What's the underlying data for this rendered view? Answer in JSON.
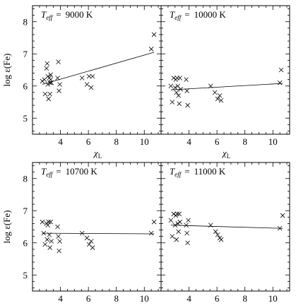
{
  "chart_data": [
    {
      "type": "scatter",
      "panel_label": {
        "symbol": "T",
        "subscript": "eff",
        "equals": "=",
        "value": "9000 K"
      },
      "xlabel": {
        "symbol": "χ",
        "subscript": "L"
      },
      "ylabel": "log ε(Fe)",
      "xlim": [
        2,
        11.2
      ],
      "ylim": [
        4.5,
        8.5
      ],
      "xticks": [
        4,
        6,
        8,
        10
      ],
      "yticks": [
        5,
        6,
        7,
        8
      ],
      "points": {
        "x": [
          2.7,
          2.85,
          2.9,
          3.0,
          3.05,
          3.1,
          3.1,
          3.15,
          3.2,
          3.25,
          3.25,
          3.3,
          3.3,
          3.35,
          3.8,
          3.85,
          3.9,
          3.95,
          5.55,
          5.9,
          6.05,
          6.2,
          6.3,
          10.5,
          10.7
        ],
        "y": [
          6.15,
          6.2,
          5.75,
          6.55,
          6.7,
          6.3,
          6.05,
          5.6,
          6.25,
          6.1,
          5.75,
          6.2,
          6.35,
          6.1,
          6.25,
          6.75,
          5.85,
          6.05,
          6.25,
          6.05,
          6.3,
          5.95,
          6.3,
          7.15,
          7.6
        ]
      },
      "fit_line": {
        "x": [
          2.7,
          10.7
        ],
        "y": [
          6.05,
          7.05
        ]
      }
    },
    {
      "type": "scatter",
      "panel_label": {
        "symbol": "T",
        "subscript": "eff",
        "equals": "=",
        "value": "10000 K"
      },
      "xlabel": {
        "symbol": "χ",
        "subscript": "L"
      },
      "ylabel": "",
      "xlim": [
        2,
        11.2
      ],
      "ylim": [
        4.5,
        8.5
      ],
      "xticks": [
        4,
        6,
        8,
        10
      ],
      "yticks": [
        5,
        6,
        7,
        8
      ],
      "points": {
        "x": [
          2.7,
          2.8,
          2.9,
          3.0,
          3.05,
          3.1,
          3.15,
          3.2,
          3.25,
          3.3,
          3.35,
          3.4,
          3.8,
          3.85,
          3.9,
          5.55,
          5.85,
          6.05,
          6.2,
          6.3,
          10.5,
          10.6
        ],
        "y": [
          6.0,
          5.5,
          6.25,
          5.95,
          6.2,
          5.8,
          6.25,
          6.0,
          5.7,
          5.45,
          6.25,
          5.9,
          6.2,
          5.85,
          5.4,
          6.0,
          5.8,
          5.6,
          5.7,
          5.55,
          6.1,
          6.5
        ]
      },
      "fit_line": {
        "x": [
          2.7,
          10.7
        ],
        "y": [
          5.88,
          6.08
        ]
      }
    },
    {
      "type": "scatter",
      "panel_label": {
        "symbol": "T",
        "subscript": "eff",
        "equals": "=",
        "value": "10700 K"
      },
      "xlabel": {
        "symbol": "χ",
        "subscript": "L"
      },
      "ylabel": "log ε(Fe)",
      "xlim": [
        2,
        11.2
      ],
      "ylim": [
        4.5,
        8.5
      ],
      "xticks": [
        4,
        6,
        8,
        10
      ],
      "yticks": [
        5,
        6,
        7,
        8
      ],
      "points": {
        "x": [
          2.7,
          2.8,
          2.9,
          3.0,
          3.05,
          3.1,
          3.15,
          3.2,
          3.25,
          3.3,
          3.35,
          3.8,
          3.85,
          3.9,
          3.95,
          5.55,
          5.9,
          6.05,
          6.2,
          6.3,
          10.5,
          10.7
        ],
        "y": [
          6.65,
          6.3,
          5.95,
          6.6,
          6.1,
          6.55,
          6.65,
          6.25,
          5.85,
          6.65,
          6.05,
          6.5,
          6.2,
          5.75,
          6.05,
          6.3,
          6.15,
          5.95,
          6.05,
          5.85,
          6.3,
          6.65
        ]
      },
      "fit_line": {
        "x": [
          2.7,
          10.7
        ],
        "y": [
          6.3,
          6.28
        ]
      }
    },
    {
      "type": "scatter",
      "panel_label": {
        "symbol": "T",
        "subscript": "eff",
        "equals": "=",
        "value": "11000 K"
      },
      "xlabel": {
        "symbol": "χ",
        "subscript": "L"
      },
      "ylabel": "",
      "xlim": [
        2,
        11.2
      ],
      "ylim": [
        4.5,
        8.5
      ],
      "xticks": [
        4,
        6,
        8,
        10
      ],
      "yticks": [
        5,
        6,
        7,
        8
      ],
      "points": {
        "x": [
          2.7,
          2.8,
          2.9,
          3.0,
          3.05,
          3.1,
          3.15,
          3.2,
          3.25,
          3.3,
          3.35,
          3.8,
          3.85,
          3.9,
          3.95,
          5.55,
          5.9,
          6.05,
          6.2,
          6.3,
          10.5,
          10.7
        ],
        "y": [
          6.7,
          6.2,
          6.9,
          6.55,
          6.85,
          6.1,
          6.9,
          6.6,
          6.35,
          6.9,
          6.65,
          6.55,
          6.3,
          6.0,
          6.7,
          6.55,
          6.35,
          6.25,
          6.15,
          6.1,
          6.45,
          6.85
        ]
      },
      "fit_line": {
        "x": [
          2.7,
          10.7
        ],
        "y": [
          6.55,
          6.45
        ]
      }
    }
  ]
}
